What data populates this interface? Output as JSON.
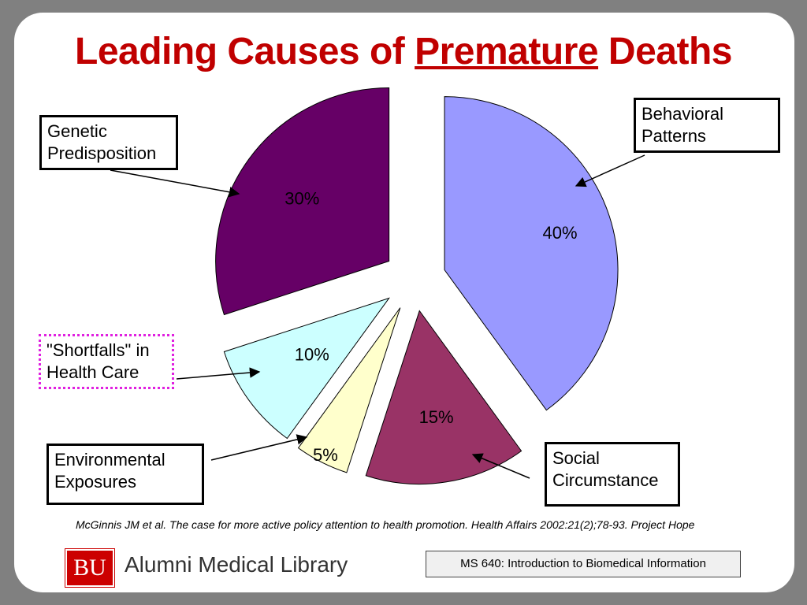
{
  "title": {
    "part1": "Leading Causes of",
    "underlined": "Premature",
    "part2": "Deaths"
  },
  "chart_data": {
    "type": "pie",
    "exploded": true,
    "slices": [
      {
        "label": "Behavioral Patterns",
        "value": 40,
        "display": "40%",
        "color": "#9999ff"
      },
      {
        "label": "Social Circumstance",
        "value": 15,
        "display": "15%",
        "color": "#993366"
      },
      {
        "label": "Environmental Exposures",
        "value": 5,
        "display": "5%",
        "color": "#ffffcc"
      },
      {
        "label": "\"Shortfalls\" in Health Care",
        "value": 10,
        "display": "10%",
        "color": "#ccffff"
      },
      {
        "label": "Genetic Predisposition",
        "value": 30,
        "display": "30%",
        "color": "#660066"
      }
    ]
  },
  "callouts": {
    "behavioral": [
      "Behavioral",
      "Patterns"
    ],
    "genetic": [
      "Genetic",
      "Predisposition"
    ],
    "shortfalls": [
      "\"Shortfalls\" in",
      "Health Care"
    ],
    "environmental": [
      "Environmental",
      "Exposures"
    ],
    "social": [
      "Social",
      "Circumstance"
    ]
  },
  "citation": "McGinnis JM et al. The case for more active policy attention to health promotion. Health Affairs 2002:21(2);78-93.  Project Hope",
  "footer": {
    "logo_text": "BU",
    "library_name": "Alumni Medical Library",
    "course": "MS 640: Introduction to Biomedical Information"
  }
}
